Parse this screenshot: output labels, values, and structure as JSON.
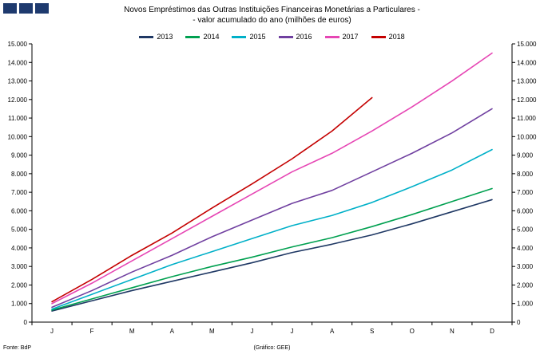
{
  "title": {
    "line1": "Novos Empréstimos das Outras Instituições Financeiras Monetárias a Particulares -",
    "line2": "- valor acumulado do ano (milhões de euros)"
  },
  "logo": {
    "color": "#1e3a6e"
  },
  "footer": {
    "source": "Fonte: BdP",
    "credit": "(Gráfico: GEE)"
  },
  "chart_data": {
    "type": "line",
    "categories": [
      "J",
      "F",
      "M",
      "A",
      "M",
      "J",
      "J",
      "A",
      "S",
      "O",
      "N",
      "D"
    ],
    "series": [
      {
        "name": "2013",
        "color": "#1f3864",
        "values": [
          600,
          1150,
          1700,
          2200,
          2700,
          3200,
          3750,
          4200,
          4700,
          5300,
          5950,
          6600
        ]
      },
      {
        "name": "2014",
        "color": "#00a050",
        "values": [
          650,
          1250,
          1850,
          2450,
          3000,
          3500,
          4050,
          4550,
          5150,
          5800,
          6500,
          7200
        ]
      },
      {
        "name": "2015",
        "color": "#00b0c8",
        "values": [
          700,
          1500,
          2300,
          3100,
          3800,
          4500,
          5200,
          5750,
          6450,
          7300,
          8200,
          9300
        ]
      },
      {
        "name": "2016",
        "color": "#7040a0",
        "values": [
          800,
          1700,
          2700,
          3600,
          4600,
          5500,
          6400,
          7100,
          8100,
          9100,
          10200,
          11500
        ]
      },
      {
        "name": "2017",
        "color": "#e646b4",
        "values": [
          1000,
          2100,
          3300,
          4500,
          5700,
          6900,
          8100,
          9100,
          10300,
          11600,
          13000,
          14500
        ]
      },
      {
        "name": "2018",
        "color": "#c40000",
        "values": [
          1100,
          2300,
          3600,
          4800,
          6150,
          7450,
          8800,
          10300,
          12100,
          null,
          null,
          null
        ]
      }
    ],
    "ylim": [
      0,
      15000
    ],
    "ytick_step": 1000,
    "grid": false,
    "legend_position": "top",
    "xlabel": "",
    "ylabel": ""
  }
}
